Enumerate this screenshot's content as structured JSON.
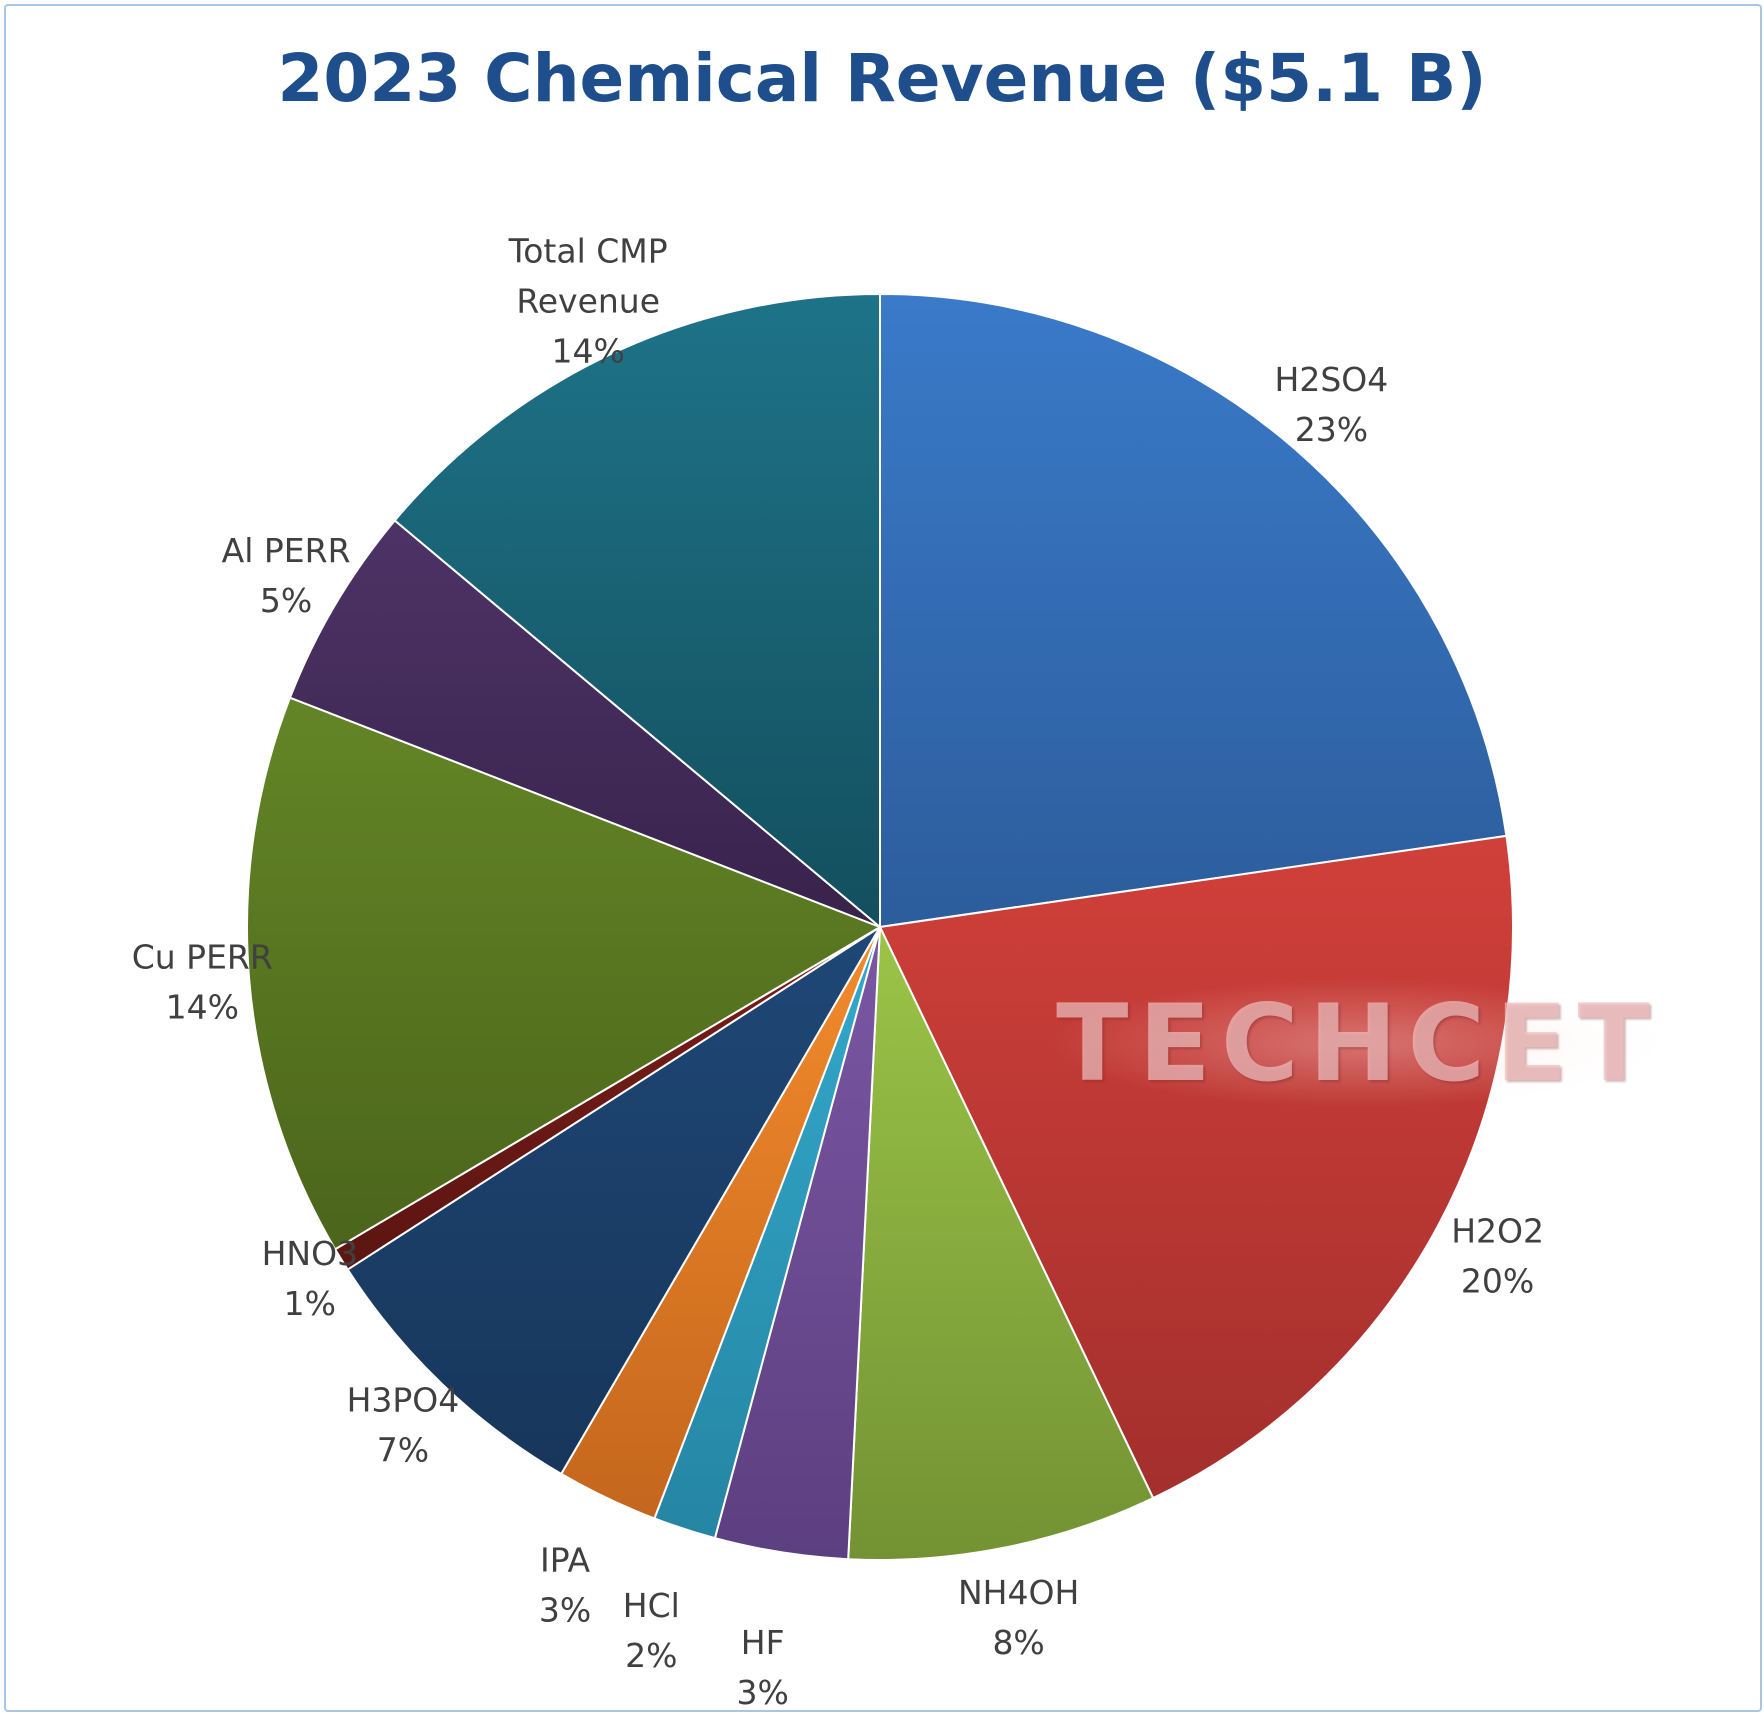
{
  "chart_data": {
    "type": "pie",
    "title": "2023 Chemical Revenue ($5.1 B)",
    "slices": [
      {
        "name": "H2SO4",
        "percent_label": "23%",
        "value": 22.7,
        "color": "#3a7ac9",
        "color_dark": "#2c5d9c"
      },
      {
        "name": "H2O2",
        "percent_label": "20%",
        "value": 20.2,
        "color": "#d1403a",
        "color_dark": "#a32f2d"
      },
      {
        "name": "NH4OH",
        "percent_label": "8%",
        "value": 7.9,
        "color": "#9bc447",
        "color_dark": "#739234"
      },
      {
        "name": "HF",
        "percent_label": "3%",
        "value": 3.4,
        "color": "#7a57a3",
        "color_dark": "#5c3f80"
      },
      {
        "name": "HCl",
        "percent_label": "2%",
        "value": 1.6,
        "color": "#34a9cc",
        "color_dark": "#2585a3"
      },
      {
        "name": "IPA",
        "percent_label": "3%",
        "value": 2.6,
        "color": "#f38b2c",
        "color_dark": "#c4661d"
      },
      {
        "name": "H3PO4",
        "percent_label": "7%",
        "value": 7.5,
        "color": "#1f4777",
        "color_dark": "#17365a"
      },
      {
        "name": "HNO3",
        "percent_label": "1%",
        "value": 0.6,
        "color": "#7a1e1a",
        "color_dark": "#5c1512"
      },
      {
        "name": "Cu PERR",
        "percent_label": "14%",
        "value": 14.4,
        "color": "#648526",
        "color_dark": "#4b651b"
      },
      {
        "name": "Al PERR",
        "percent_label": "5%",
        "value": 5.2,
        "color": "#4d3366",
        "color_dark": "#38234c"
      },
      {
        "name": "Total CMP Revenue",
        "percent_label": "14%",
        "value": 13.9,
        "color": "#1e7388",
        "color_dark": "#134f5e"
      }
    ],
    "legend": "none",
    "data_labels": "outside"
  },
  "watermark": {
    "text": "TECHCET"
  },
  "colors": {
    "title": "#1f4e8c",
    "label_text": "#404040",
    "frame_border": "#a9c4e6"
  }
}
